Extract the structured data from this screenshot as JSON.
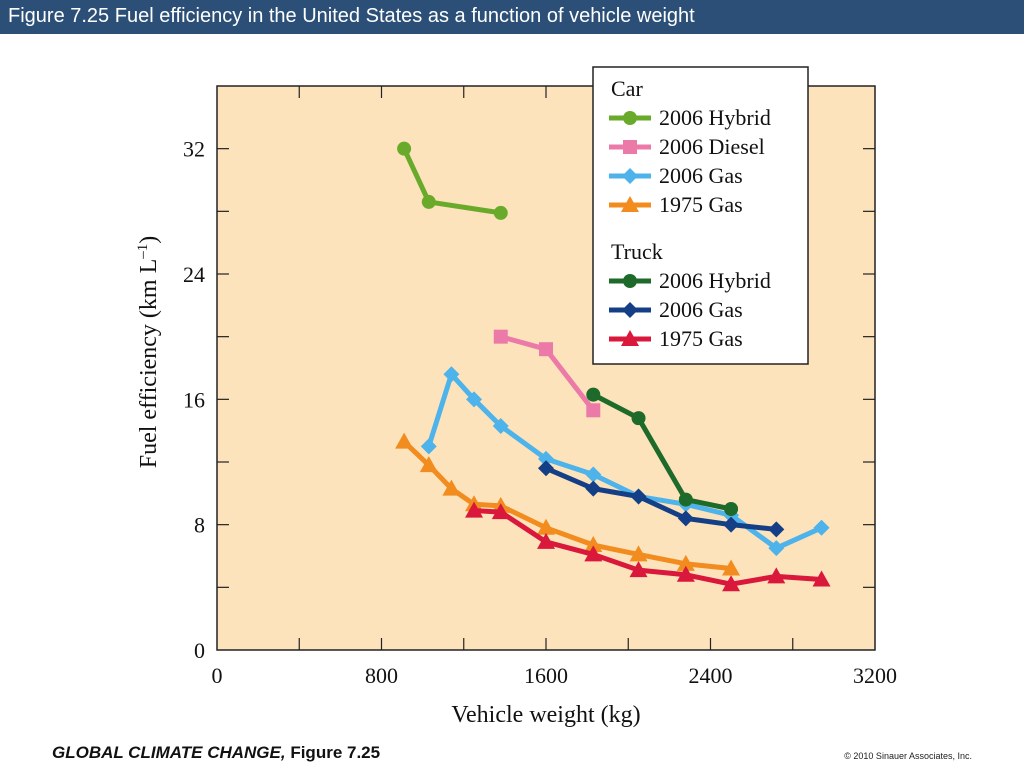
{
  "header": {
    "title": "Figure 7.25  Fuel efficiency in the United States as a function of vehicle weight"
  },
  "footer": {
    "book_title": "GLOBAL CLIMATE CHANGE,",
    "figure_label": "Figure 7.25",
    "copyright": "© 2010 Sinauer Associates, Inc."
  },
  "chart_data": {
    "type": "line",
    "title": "",
    "xlabel": "Vehicle weight (kg)",
    "ylabel": "Fuel efficiency (km L",
    "ylabel_sup": "–1",
    "ylabel_close": ")",
    "xlim": [
      0,
      3200
    ],
    "ylim": [
      0,
      36
    ],
    "xticks": [
      0,
      800,
      1600,
      2400,
      3200
    ],
    "yticks": [
      0,
      8,
      16,
      24,
      32
    ],
    "grid": false,
    "legend_position": "top-right",
    "legend_groups": [
      {
        "name": "Car",
        "series": [
          0,
          1,
          2,
          3
        ]
      },
      {
        "name": "Truck",
        "series": [
          4,
          5,
          6
        ]
      }
    ],
    "series": [
      {
        "name": "2006 Hybrid",
        "group": "Car",
        "color": "#6aaa2a",
        "marker": "circle",
        "points": [
          [
            910,
            32.0
          ],
          [
            1030,
            28.6
          ],
          [
            1380,
            27.9
          ]
        ]
      },
      {
        "name": "2006 Diesel",
        "group": "Car",
        "color": "#ec7aa8",
        "marker": "square",
        "points": [
          [
            1380,
            20.0
          ],
          [
            1600,
            19.2
          ],
          [
            1830,
            15.3
          ]
        ]
      },
      {
        "name": "2006 Gas",
        "group": "Car",
        "color": "#4db3ea",
        "marker": "diamond",
        "points": [
          [
            1030,
            13.0
          ],
          [
            1140,
            17.6
          ],
          [
            1250,
            16.0
          ],
          [
            1380,
            14.3
          ],
          [
            1600,
            12.2
          ],
          [
            1830,
            11.2
          ],
          [
            2050,
            9.8
          ],
          [
            2280,
            9.3
          ],
          [
            2500,
            8.6
          ],
          [
            2720,
            6.5
          ],
          [
            2940,
            7.8
          ]
        ]
      },
      {
        "name": "1975 Gas",
        "group": "Car",
        "color": "#f28c1e",
        "marker": "triangle",
        "points": [
          [
            910,
            13.3
          ],
          [
            1030,
            11.8
          ],
          [
            1140,
            10.3
          ],
          [
            1250,
            9.3
          ],
          [
            1380,
            9.2
          ],
          [
            1600,
            7.8
          ],
          [
            1830,
            6.7
          ],
          [
            2050,
            6.1
          ],
          [
            2280,
            5.5
          ],
          [
            2500,
            5.2
          ]
        ]
      },
      {
        "name": "2006 Hybrid",
        "group": "Truck",
        "color": "#1e6a2a",
        "marker": "circle",
        "points": [
          [
            1830,
            16.3
          ],
          [
            2050,
            14.8
          ],
          [
            2280,
            9.6
          ],
          [
            2500,
            9.0
          ]
        ]
      },
      {
        "name": "2006 Gas",
        "group": "Truck",
        "color": "#143f86",
        "marker": "diamond",
        "points": [
          [
            1600,
            11.6
          ],
          [
            1830,
            10.3
          ],
          [
            2050,
            9.8
          ],
          [
            2280,
            8.4
          ],
          [
            2500,
            8.0
          ],
          [
            2720,
            7.7
          ]
        ]
      },
      {
        "name": "1975 Gas",
        "group": "Truck",
        "color": "#d9183c",
        "marker": "triangle",
        "points": [
          [
            1250,
            8.9
          ],
          [
            1380,
            8.8
          ],
          [
            1600,
            6.9
          ],
          [
            1830,
            6.1
          ],
          [
            2050,
            5.1
          ],
          [
            2280,
            4.8
          ],
          [
            2500,
            4.2
          ],
          [
            2720,
            4.7
          ],
          [
            2940,
            4.5
          ]
        ]
      }
    ]
  }
}
